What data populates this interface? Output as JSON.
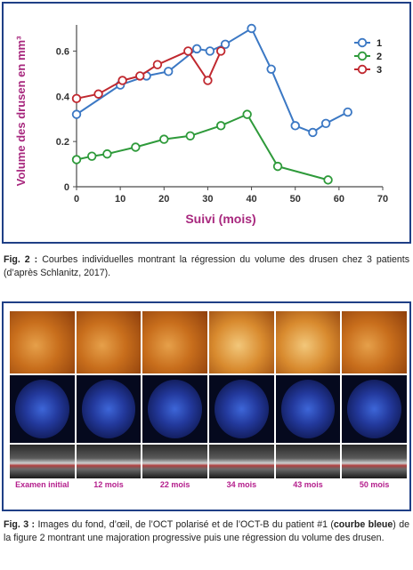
{
  "chart_data": {
    "type": "line",
    "xlabel": "Suivi (mois)",
    "ylabel": "Volume des drusen en mm³",
    "xlim": [
      0,
      70
    ],
    "ylim": [
      0,
      0.7
    ],
    "xticks": [
      "0",
      "10",
      "20",
      "30",
      "40",
      "50",
      "60",
      "70"
    ],
    "yticks": [
      "0",
      "0.2",
      "0.4",
      "0.6"
    ],
    "legend_position": "top-right",
    "grid": false,
    "series": [
      {
        "name": "1",
        "color": "#3b78c4",
        "x": [
          0,
          10,
          16,
          21,
          27.5,
          30.5,
          34,
          40,
          44.5,
          50,
          54,
          57,
          62
        ],
        "y": [
          0.32,
          0.45,
          0.49,
          0.51,
          0.61,
          0.6,
          0.63,
          0.7,
          0.52,
          0.27,
          0.24,
          0.28,
          0.33
        ]
      },
      {
        "name": "2",
        "color": "#2e9a3a",
        "x": [
          0,
          3.5,
          7,
          13.5,
          20,
          26,
          33,
          39,
          46,
          57.5
        ],
        "y": [
          0.12,
          0.135,
          0.145,
          0.175,
          0.21,
          0.225,
          0.27,
          0.32,
          0.09,
          0.03
        ]
      },
      {
        "name": "3",
        "color": "#c0282f",
        "x": [
          0,
          5,
          10.5,
          14.5,
          18.5,
          25.5,
          30,
          33
        ],
        "y": [
          0.39,
          0.41,
          0.47,
          0.49,
          0.54,
          0.6,
          0.47,
          0.6
        ]
      }
    ]
  },
  "captions": {
    "fig2_label": "Fig. 2 :",
    "fig2_text": " Courbes individuelles montrant la régression du volume des drusen chez 3 patients (d’après Schlanitz, 2017).",
    "fig3_label": "Fig. 3 :",
    "fig3_text_a": " Images du fond, d’œil, de l’OCT polarisé et de l’OCT-B du patient #1 (",
    "fig3_bold": "courbe bleue",
    "fig3_text_b": ") de la figure 2 montrant une majoration progressive puis une régression du volume des drusen."
  },
  "image_labels": [
    "Examen initial",
    "12 mois",
    "22 mois",
    "34 mois",
    "43 mois",
    "50 mois"
  ]
}
